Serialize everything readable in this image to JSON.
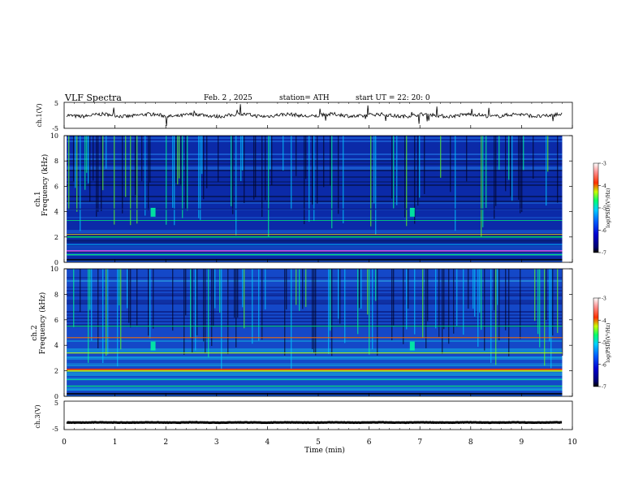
{
  "header": {
    "title": "VLF  Spectra",
    "date": "Feb. 2  , 2025",
    "station": "station= ATH",
    "start": "start  UT  =   22: 20: 0"
  },
  "chart_data": [
    {
      "type": "line",
      "name": "ch1-waveform",
      "ylabel": "ch.1(V)",
      "ylim": [
        -5,
        5
      ],
      "yticks": [
        "5",
        "-5"
      ],
      "xlim": [
        0,
        10
      ],
      "baseline": 0,
      "trace_extent_min": [
        0.05,
        9.8
      ],
      "color": "#000000"
    },
    {
      "type": "heatmap",
      "name": "ch1-spectrogram",
      "ylabel": "ch.1\nFrequency (kHz)",
      "ylabel_lines": [
        "ch.1",
        "Frequency  (kHz)"
      ],
      "ylim": [
        0,
        10
      ],
      "yticks": [
        "0",
        "2",
        "4",
        "6",
        "8",
        "10"
      ],
      "xlim": [
        0,
        10
      ],
      "data_extent_min": [
        0.05,
        9.8
      ],
      "colorbar": {
        "label": "log(PSD)(V²/Hz)",
        "ticks": [
          "-3",
          "-4",
          "-5",
          "-6",
          "-7"
        ],
        "range": [
          -7,
          -3
        ]
      }
    },
    {
      "type": "heatmap",
      "name": "ch2-spectrogram",
      "ylabel": "ch.2\nFrequency (kHz)",
      "ylabel_lines": [
        "ch.2",
        "Frequency  (kHz)"
      ],
      "ylim": [
        0,
        10
      ],
      "yticks": [
        "0",
        "2",
        "4",
        "6",
        "8",
        "10"
      ],
      "xlim": [
        0,
        10
      ],
      "data_extent_min": [
        0.05,
        9.8
      ],
      "colorbar": {
        "label": "log(PSD)(V²/Hz)",
        "ticks": [
          "-3",
          "-4",
          "-5",
          "-6",
          "-7"
        ],
        "range": [
          -7,
          -3
        ]
      }
    },
    {
      "type": "line",
      "name": "ch3-waveform",
      "ylabel": "ch.3(V)",
      "ylim": [
        -5,
        5
      ],
      "yticks": [
        "5",
        "-5"
      ],
      "xlim": [
        0,
        10
      ],
      "baseline": -2.5,
      "trace_extent_min": [
        0.05,
        9.8
      ],
      "color": "#000000"
    }
  ],
  "xaxis": {
    "label": "Time  (min)",
    "ticks": [
      "0",
      "1",
      "2",
      "3",
      "4",
      "5",
      "6",
      "7",
      "8",
      "9",
      "10"
    ],
    "range": [
      0,
      10
    ]
  },
  "colors": {
    "spectrogram_background": "#0b2aa8",
    "colormap": [
      "#000000",
      "#0000b0",
      "#0050ff",
      "#00c8ff",
      "#00ff70",
      "#c8ff00",
      "#ff2000",
      "#ffc0c0",
      "#ffffff"
    ]
  }
}
